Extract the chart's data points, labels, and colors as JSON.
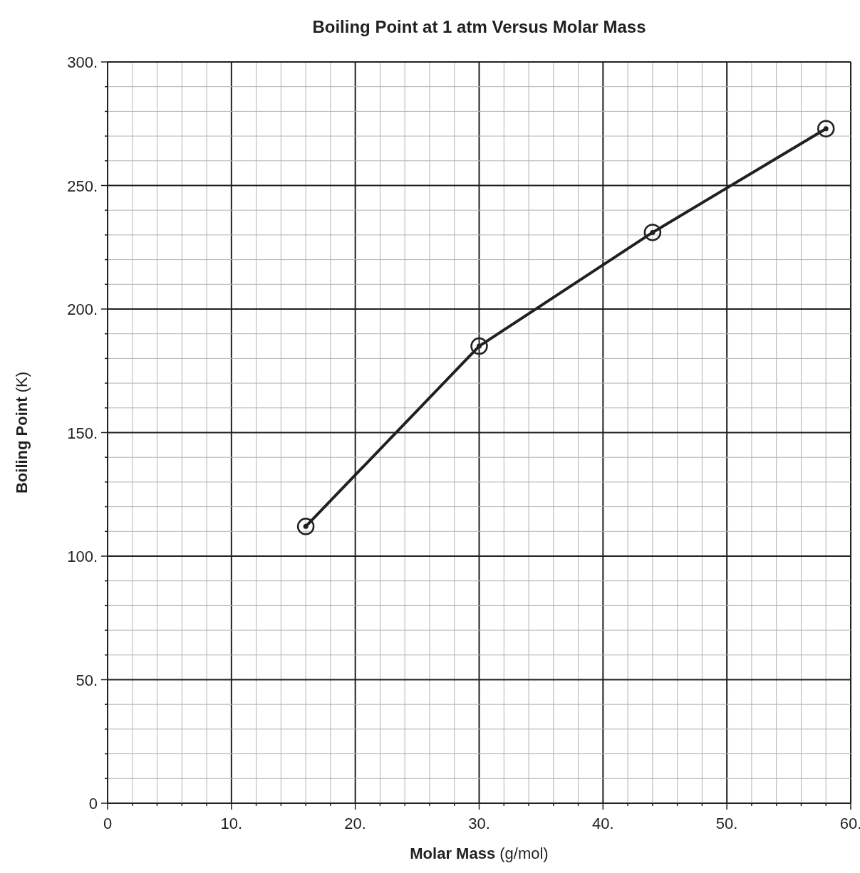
{
  "chart_data": {
    "type": "line",
    "title": "Boiling Point at 1 atm Versus Molar Mass",
    "xlabel": "Molar Mass (g/mol)",
    "ylabel": "Boiling Point (K)",
    "x": [
      16,
      30,
      44,
      58
    ],
    "series": [
      {
        "color": "#231f20",
        "values": [
          112,
          185,
          231,
          273
        ]
      }
    ],
    "xlim": [
      0,
      60
    ],
    "ylim": [
      0,
      300
    ],
    "xticks": [
      {
        "value": 0,
        "label": "0"
      },
      {
        "value": 2,
        "label": null
      },
      {
        "value": 4,
        "label": null
      },
      {
        "value": 6,
        "label": null
      },
      {
        "value": 8,
        "label": null
      },
      {
        "value": 10,
        "label": "10."
      },
      {
        "value": 12,
        "label": null
      },
      {
        "value": 14,
        "label": null
      },
      {
        "value": 16,
        "label": null
      },
      {
        "value": 18,
        "label": null
      },
      {
        "value": 20,
        "label": "20."
      },
      {
        "value": 22,
        "label": null
      },
      {
        "value": 24,
        "label": null
      },
      {
        "value": 26,
        "label": null
      },
      {
        "value": 28,
        "label": null
      },
      {
        "value": 30,
        "label": "30."
      },
      {
        "value": 32,
        "label": null
      },
      {
        "value": 34,
        "label": null
      },
      {
        "value": 36,
        "label": null
      },
      {
        "value": 38,
        "label": null
      },
      {
        "value": 40,
        "label": "40."
      },
      {
        "value": 42,
        "label": null
      },
      {
        "value": 44,
        "label": null
      },
      {
        "value": 46,
        "label": null
      },
      {
        "value": 48,
        "label": null
      },
      {
        "value": 50,
        "label": "50."
      },
      {
        "value": 52,
        "label": null
      },
      {
        "value": 54,
        "label": null
      },
      {
        "value": 56,
        "label": null
      },
      {
        "value": 58,
        "label": null
      },
      {
        "value": 60,
        "label": "60."
      }
    ],
    "yticks": [
      {
        "value": 0,
        "label": "0"
      },
      {
        "value": 10,
        "label": null
      },
      {
        "value": 20,
        "label": null
      },
      {
        "value": 30,
        "label": null
      },
      {
        "value": 40,
        "label": null
      },
      {
        "value": 50,
        "label": "50."
      },
      {
        "value": 60,
        "label": null
      },
      {
        "value": 70,
        "label": null
      },
      {
        "value": 80,
        "label": null
      },
      {
        "value": 90,
        "label": null
      },
      {
        "value": 100,
        "label": "100."
      },
      {
        "value": 110,
        "label": null
      },
      {
        "value": 120,
        "label": null
      },
      {
        "value": 130,
        "label": null
      },
      {
        "value": 140,
        "label": null
      },
      {
        "value": 150,
        "label": "150."
      },
      {
        "value": 160,
        "label": null
      },
      {
        "value": 170,
        "label": null
      },
      {
        "value": 180,
        "label": null
      },
      {
        "value": 190,
        "label": null
      },
      {
        "value": 200,
        "label": "200."
      },
      {
        "value": 210,
        "label": null
      },
      {
        "value": 220,
        "label": null
      },
      {
        "value": 230,
        "label": null
      },
      {
        "value": 240,
        "label": null
      },
      {
        "value": 250,
        "label": "250."
      },
      {
        "value": 260,
        "label": null
      },
      {
        "value": 270,
        "label": null
      },
      {
        "value": 280,
        "label": null
      },
      {
        "value": 290,
        "label": null
      },
      {
        "value": 300,
        "label": "300."
      }
    ],
    "grid": true,
    "marker": "circle",
    "line_style": "solid"
  }
}
